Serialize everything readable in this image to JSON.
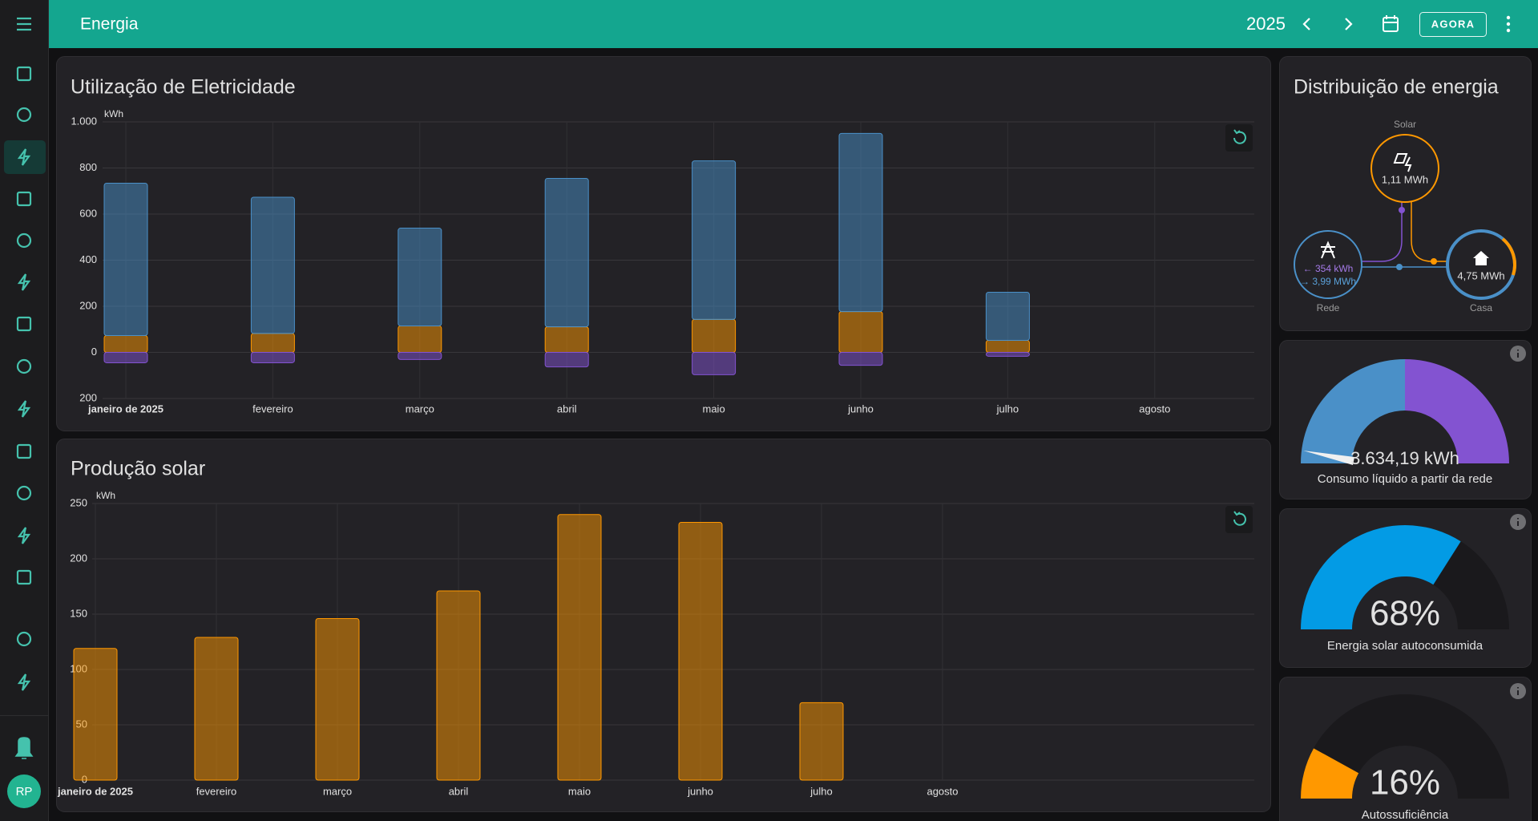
{
  "header": {
    "title": "Energia",
    "period": "2025",
    "now_button": "AGORA"
  },
  "sidebar": {
    "avatar": "RP"
  },
  "chart_data": [
    {
      "type": "bar",
      "stacked": true,
      "title": "Utilização de Eletricidade",
      "ylabel": "kWh",
      "categories": [
        "janeiro de 2025",
        "fevereiro",
        "março",
        "abril",
        "maio",
        "junho",
        "julho",
        "agosto"
      ],
      "series": [
        {
          "color": "#ff9800",
          "values": [
            73,
            82,
            115,
            111,
            143,
            177,
            52,
            null
          ]
        },
        {
          "color": "#4a90c8",
          "values": [
            661,
            591,
            424,
            644,
            688,
            773,
            209,
            null
          ]
        },
        {
          "color": "#8353d1",
          "values": [
            -45,
            -45,
            -31,
            -63,
            -97,
            -56,
            -17,
            null
          ]
        }
      ],
      "ylim": [
        -200,
        1000
      ],
      "yticks": [
        {
          "value": -200,
          "label": "200"
        },
        0,
        200,
        400,
        600,
        800,
        {
          "value": 1000,
          "label": "1.000"
        }
      ],
      "grid": true
    },
    {
      "type": "bar",
      "title": "Produção solar",
      "ylabel": "kWh",
      "categories": [
        "janeiro de 2025",
        "fevereiro",
        "março",
        "abril",
        "maio",
        "junho",
        "julho",
        "agosto"
      ],
      "values": [
        119,
        129,
        146,
        171,
        240,
        233,
        70,
        null
      ],
      "color": "#ff9800",
      "ylim": [
        0,
        250
      ],
      "yticks": [
        0,
        50,
        100,
        150,
        200,
        250
      ],
      "grid": true
    }
  ],
  "distribution": {
    "title": "Distribuição de energia",
    "solar": {
      "label": "Solar",
      "value": "1,11 MWh"
    },
    "grid": {
      "label": "Rede",
      "returned": "← 354 kWh",
      "consumed": "→ 3,99 MWh"
    },
    "home": {
      "label": "Casa",
      "value": "4,75 MWh"
    }
  },
  "gauges": [
    {
      "value_label": "3.634,19 kWh",
      "label": "Consumo líquido a partir da rede"
    },
    {
      "value": 68,
      "value_label": "68%",
      "label": "Energia solar autoconsumida",
      "color": "#039be5"
    },
    {
      "value": 16,
      "value_label": "16%",
      "label": "Autossuficiência",
      "color": "#ff9800"
    }
  ]
}
